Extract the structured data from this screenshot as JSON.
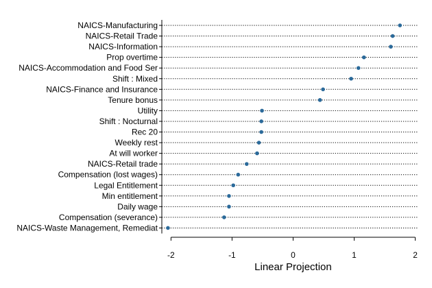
{
  "chart_data": {
    "type": "scatter",
    "title": "",
    "xlabel": "Linear Projection",
    "ylabel": "",
    "xlim": [
      -2.15,
      2.05
    ],
    "xticks": [
      -2,
      -1,
      0,
      1,
      2
    ],
    "x_tick_labels": [
      "-2",
      "-1",
      "0",
      "1",
      "2"
    ],
    "grid": "dotted horizontal guide per category",
    "legend": "none",
    "point_color": "#2b6a9a",
    "categories": [
      "NAICS-Manufacturing",
      "NAICS-Retail Trade",
      "NAICS-Information",
      "Prop overtime",
      "NAICS-Accommodation and Food Ser",
      "Shift : Mixed",
      "NAICS-Finance and Insurance",
      "Tenure bonus",
      "Utility",
      "Shift : Nocturnal",
      "Rec 20",
      "Weekly rest",
      "At will worker",
      "NAICS-Retail trade",
      "Compensation (lost wages)",
      "Legal Entitlement",
      "Min entitlement",
      "Daily wage",
      "Compensation (severance)",
      "NAICS-Waste Management, Remediat"
    ],
    "values": [
      1.75,
      1.63,
      1.6,
      1.16,
      1.07,
      0.95,
      0.49,
      0.44,
      -0.51,
      -0.52,
      -0.52,
      -0.56,
      -0.59,
      -0.76,
      -0.9,
      -0.98,
      -1.05,
      -1.05,
      -1.13,
      -2.05
    ]
  }
}
